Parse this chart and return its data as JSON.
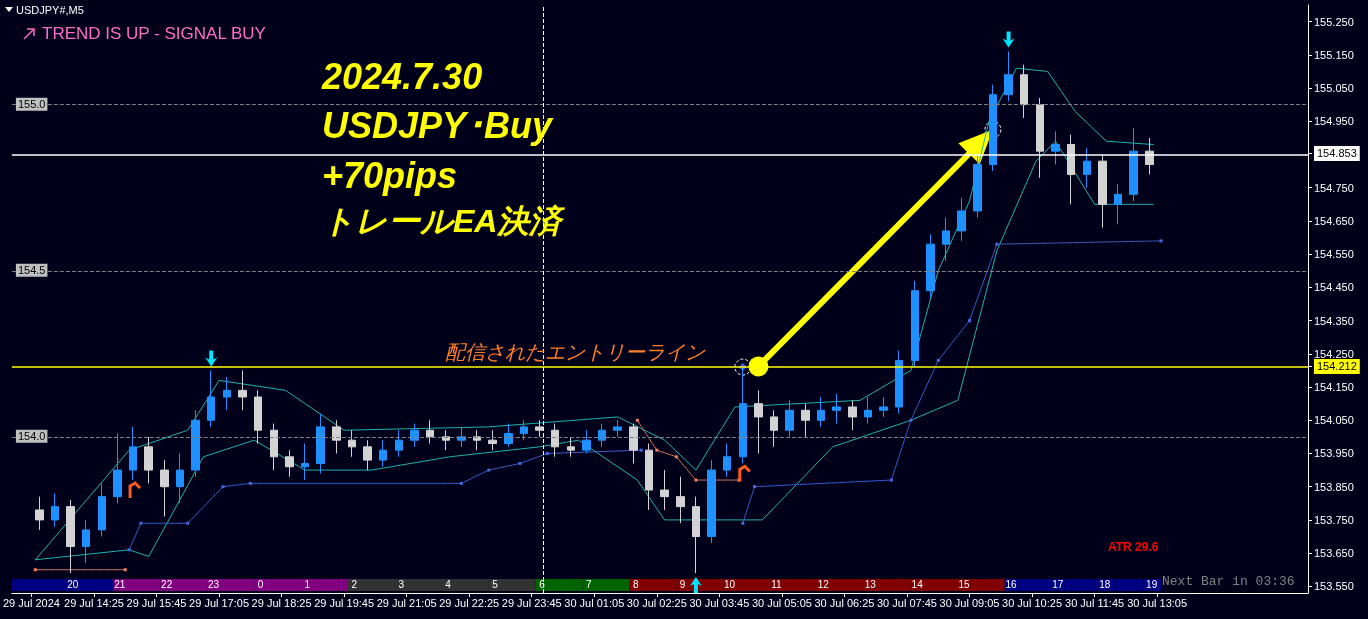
{
  "chart_data": {
    "type": "candlestick",
    "title": "USDJPY#,M5",
    "subtitle": "TREND IS UP - SIGNAL BUY",
    "annotations": [
      "2024.7.30",
      "USDJPY･Buy",
      "+70pips",
      "トレールEA決済",
      "ATR 29.6",
      "Next Bar in 03:36"
    ],
    "xlim": [
      "2024-07-29T12:40",
      "2024-07-30T16:18"
    ],
    "x2lim": [
      "2024-07-29T12:40",
      "2024-07-30T16:18"
    ],
    "x2ticks": [
      {
        "value": "2024-07-29T13:58",
        "label": "20"
      },
      {
        "value": "2024-07-29T14:58",
        "label": "21"
      },
      {
        "value": "2024-07-29T15:58",
        "label": "22"
      },
      {
        "value": "2024-07-29T16:58",
        "label": "23"
      },
      {
        "value": "2024-07-29T17:58",
        "label": "0"
      },
      {
        "value": "2024-07-29T18:58",
        "label": "1"
      },
      {
        "value": "2024-07-29T19:58",
        "label": "2"
      },
      {
        "value": "2024-07-29T20:58",
        "label": "3"
      },
      {
        "value": "2024-07-29T21:58",
        "label": "4"
      },
      {
        "value": "2024-07-29T22:58",
        "label": "5"
      },
      {
        "value": "2024-07-29T23:58",
        "label": "6"
      },
      {
        "value": "2024-07-30T00:58",
        "label": "7"
      },
      {
        "value": "2024-07-30T01:58",
        "label": "8"
      },
      {
        "value": "2024-07-30T02:58",
        "label": "9"
      },
      {
        "value": "2024-07-30T03:58",
        "label": "10"
      },
      {
        "value": "2024-07-30T04:58",
        "label": "11"
      },
      {
        "value": "2024-07-30T05:58",
        "label": "12"
      },
      {
        "value": "2024-07-30T06:58",
        "label": "13"
      },
      {
        "value": "2024-07-30T07:58",
        "label": "14"
      },
      {
        "value": "2024-07-30T08:58",
        "label": "15"
      },
      {
        "value": "2024-07-30T09:58",
        "label": "16"
      },
      {
        "value": "2024-07-30T10:58",
        "label": "17"
      },
      {
        "value": "2024-07-30T11:58",
        "label": "18"
      },
      {
        "value": "2024-07-30T12:58",
        "label": "19"
      }
    ],
    "xticks": [
      {
        "value": "2024-07-29T13:05",
        "label": "29 Jul 2024"
      },
      {
        "value": "2024-07-29T14:25",
        "label": "29 Jul 14:25"
      },
      {
        "value": "2024-07-29T15:45",
        "label": "29 Jul 15:45"
      },
      {
        "value": "2024-07-29T17:05",
        "label": "29 Jul 17:05"
      },
      {
        "value": "2024-07-29T18:25",
        "label": "29 Jul 18:25"
      },
      {
        "value": "2024-07-29T19:45",
        "label": "29 Jul 19:45"
      },
      {
        "value": "2024-07-29T21:05",
        "label": "29 Jul 21:05"
      },
      {
        "value": "2024-07-29T22:25",
        "label": "29 Jul 22:25"
      },
      {
        "value": "2024-07-29T23:45",
        "label": "29 Jul 23:45"
      },
      {
        "value": "2024-07-30T01:05",
        "label": "30 Jul 01:05"
      },
      {
        "value": "2024-07-30T02:25",
        "label": "30 Jul 02:25"
      },
      {
        "value": "2024-07-30T03:45",
        "label": "30 Jul 03:45"
      },
      {
        "value": "2024-07-30T05:05",
        "label": "30 Jul 05:05"
      },
      {
        "value": "2024-07-30T06:25",
        "label": "30 Jul 06:25"
      },
      {
        "value": "2024-07-30T07:45",
        "label": "30 Jul 07:45"
      },
      {
        "value": "2024-07-30T09:05",
        "label": "30 Jul 09:05"
      },
      {
        "value": "2024-07-30T10:25",
        "label": "30 Jul 10:25"
      },
      {
        "value": "2024-07-30T11:45",
        "label": "30 Jul 11:45"
      },
      {
        "value": "2024-07-30T13:05",
        "label": "30 Jul 13:05"
      }
    ],
    "ylim": [
      153.53,
      155.3
    ],
    "yticks": [
      {
        "value": 153.55,
        "label": "153.550"
      },
      {
        "value": 153.65,
        "label": "153.650"
      },
      {
        "value": 153.75,
        "label": "153.750"
      },
      {
        "value": 153.85,
        "label": "153.850"
      },
      {
        "value": 153.95,
        "label": "153.950"
      },
      {
        "value": 154.05,
        "label": "154.050"
      },
      {
        "value": 154.15,
        "label": "154.150"
      },
      {
        "value": 154.212,
        "label": "154.212"
      },
      {
        "value": 154.25,
        "label": "154.250"
      },
      {
        "value": 154.35,
        "label": "154.350"
      },
      {
        "value": 154.45,
        "label": "154.450"
      },
      {
        "value": 154.55,
        "label": "154.550"
      },
      {
        "value": 154.65,
        "label": "154.650"
      },
      {
        "value": 154.75,
        "label": "154.750"
      },
      {
        "value": 154.853,
        "label": "154.853"
      },
      {
        "value": 154.95,
        "label": "154.950"
      },
      {
        "value": 155.05,
        "label": "155.050"
      },
      {
        "value": 155.15,
        "label": "155.150"
      },
      {
        "value": 155.25,
        "label": "155.250"
      }
    ],
    "grid": false,
    "ref_lines": [
      {
        "axis": "y",
        "value": 155.0,
        "label": "155.0",
        "color": "#808080",
        "line_style": "dashed"
      },
      {
        "axis": "y",
        "value": 154.5,
        "label": "154.5",
        "color": "#808080",
        "line_style": "dashed"
      },
      {
        "axis": "y",
        "value": 154.0,
        "label": "154.0",
        "color": "#808080",
        "line_style": "dashed"
      },
      {
        "axis": "y",
        "value": 154.853,
        "color": "#ffffff",
        "line_style": "solid"
      },
      {
        "axis": "y",
        "value": 154.212,
        "label": "配信されたエントリーライン",
        "color": "#ffff00",
        "line_style": "solid"
      },
      {
        "axis": "x",
        "value": "2024-07-30T00:00",
        "color": "#ffffff",
        "line_style": "dashed"
      }
    ],
    "series": [
      {
        "type": "line",
        "color": "#20b2aa",
        "x": [
          "2024-07-29T13:10",
          "2024-07-29T15:10",
          "2024-07-29T16:25",
          "2024-07-29T17:05",
          "2024-07-29T18:30",
          "2024-07-29T19:45",
          "2024-07-29T22:50",
          "2024-07-30T01:35",
          "2024-07-30T02:35",
          "2024-07-30T03:15",
          "2024-07-30T04:05",
          "2024-07-30T06:45",
          "2024-07-30T07:50",
          "2024-07-30T08:25",
          "2024-07-30T09:05",
          "2024-07-30T09:30",
          "2024-07-30T10:05",
          "2024-07-30T10:45",
          "2024-07-30T11:20",
          "2024-07-30T12:00",
          "2024-07-30T13:00"
        ],
        "values": [
          153.63,
          153.96,
          154.02,
          154.17,
          154.14,
          154.02,
          154.03,
          154.06,
          153.99,
          153.9,
          154.09,
          154.11,
          154.2,
          154.5,
          154.71,
          154.95,
          155.11,
          155.1,
          154.98,
          154.89,
          154.88
        ]
      },
      {
        "type": "line",
        "color": "#20b2aa",
        "x": [
          "2024-07-29T13:10",
          "2024-07-29T15:10",
          "2024-07-29T15:35",
          "2024-07-29T16:45",
          "2024-07-29T17:50",
          "2024-07-29T18:55",
          "2024-07-29T20:20",
          "2024-07-29T22:00",
          "2024-07-29T23:55",
          "2024-07-30T00:45",
          "2024-07-30T02:00",
          "2024-07-30T02:35",
          "2024-07-30T04:40",
          "2024-07-30T06:10",
          "2024-07-30T07:50",
          "2024-07-30T08:50",
          "2024-07-30T09:40",
          "2024-07-30T10:30",
          "2024-07-30T10:55",
          "2024-07-30T11:45",
          "2024-07-30T13:00"
        ],
        "values": [
          153.63,
          153.66,
          153.64,
          153.94,
          153.99,
          153.9,
          153.9,
          153.94,
          153.97,
          153.99,
          153.87,
          153.75,
          153.75,
          153.97,
          154.05,
          154.11,
          154.56,
          154.83,
          154.89,
          154.7,
          154.7
        ]
      },
      {
        "type": "line",
        "color": "#4169e1",
        "marker": "square",
        "line_style": "dotted",
        "x": [
          "2024-07-29T15:10",
          "2024-07-29T15:25",
          "2024-07-29T16:25",
          "2024-07-29T17:10",
          "2024-07-29T17:45",
          "2024-07-29T22:15",
          "2024-07-29T22:50",
          "2024-07-29T23:30",
          "2024-07-30T00:05",
          "2024-07-30T02:05",
          "2024-07-30T03:00",
          "2024-07-30T04:15",
          "2024-07-30T04:30",
          "2024-07-30T07:25",
          "2024-07-30T07:50",
          "2024-07-30T08:25",
          "2024-07-30T09:05",
          "2024-07-30T09:40",
          "2024-07-30T13:10"
        ],
        "values": [
          153.66,
          153.74,
          153.74,
          153.85,
          153.86,
          153.86,
          153.9,
          153.92,
          153.95,
          153.96,
          null,
          153.74,
          153.85,
          153.87,
          154.05,
          154.23,
          154.35,
          154.58,
          154.59
        ]
      },
      {
        "type": "line",
        "color": "#f08060",
        "marker": "square",
        "line_style": "dotted",
        "x": [
          "2024-07-29T13:10",
          "2024-07-29T15:05",
          "2024-07-29T20:00",
          "2024-07-30T02:00",
          "2024-07-30T02:25",
          "2024-07-30T02:50",
          "2024-07-30T03:15",
          "2024-07-30T04:10"
        ],
        "values": [
          153.6,
          153.6,
          null,
          154.05,
          153.96,
          153.94,
          153.87,
          153.87
        ]
      },
      {
        "type": "candlestick",
        "x": [
          "2024-07-29T13:15",
          "2024-07-29T13:35",
          "2024-07-29T13:55",
          "2024-07-29T14:15",
          "2024-07-29T14:35",
          "2024-07-29T14:55",
          "2024-07-29T15:15",
          "2024-07-29T15:35",
          "2024-07-29T15:55",
          "2024-07-29T16:15",
          "2024-07-29T16:35",
          "2024-07-29T16:55",
          "2024-07-29T17:15",
          "2024-07-29T17:35",
          "2024-07-29T17:55",
          "2024-07-29T18:15",
          "2024-07-29T18:35",
          "2024-07-29T18:55",
          "2024-07-29T19:15",
          "2024-07-29T19:35",
          "2024-07-29T19:55",
          "2024-07-29T20:15",
          "2024-07-29T20:35",
          "2024-07-29T20:55",
          "2024-07-29T21:15",
          "2024-07-29T21:35",
          "2024-07-29T21:55",
          "2024-07-29T22:15",
          "2024-07-29T22:35",
          "2024-07-29T22:55",
          "2024-07-29T23:15",
          "2024-07-29T23:35",
          "2024-07-29T23:55",
          "2024-07-30T00:15",
          "2024-07-30T00:35",
          "2024-07-30T00:55",
          "2024-07-30T01:15",
          "2024-07-30T01:35",
          "2024-07-30T01:55",
          "2024-07-30T02:15",
          "2024-07-30T02:35",
          "2024-07-30T02:55",
          "2024-07-30T03:15",
          "2024-07-30T03:35",
          "2024-07-30T03:55",
          "2024-07-30T04:15",
          "2024-07-30T04:35",
          "2024-07-30T04:55",
          "2024-07-30T05:15",
          "2024-07-30T05:35",
          "2024-07-30T05:55",
          "2024-07-30T06:15",
          "2024-07-30T06:35",
          "2024-07-30T06:55",
          "2024-07-30T07:15",
          "2024-07-30T07:35",
          "2024-07-30T07:55",
          "2024-07-30T08:15",
          "2024-07-30T08:35",
          "2024-07-30T08:55",
          "2024-07-30T09:15",
          "2024-07-30T09:35",
          "2024-07-30T09:55",
          "2024-07-30T10:15",
          "2024-07-30T10:35",
          "2024-07-30T10:55",
          "2024-07-30T11:15",
          "2024-07-30T11:35",
          "2024-07-30T11:55",
          "2024-07-30T12:15",
          "2024-07-30T12:35",
          "2024-07-30T12:55"
        ],
        "ohlc": [
          [
            153.78,
            153.82,
            153.72,
            153.75
          ],
          [
            153.75,
            153.83,
            153.73,
            153.79
          ],
          [
            153.79,
            153.81,
            153.59,
            153.67
          ],
          [
            153.67,
            153.75,
            153.62,
            153.72
          ],
          [
            153.72,
            153.86,
            153.7,
            153.82
          ],
          [
            153.82,
            154.01,
            153.8,
            153.9
          ],
          [
            153.9,
            154.03,
            153.87,
            153.97
          ],
          [
            153.97,
            154.0,
            153.86,
            153.9
          ],
          [
            153.9,
            153.93,
            153.76,
            153.85
          ],
          [
            153.85,
            153.95,
            153.8,
            153.9
          ],
          [
            153.9,
            154.08,
            153.88,
            154.05
          ],
          [
            154.05,
            154.2,
            154.03,
            154.12
          ],
          [
            154.12,
            154.18,
            154.08,
            154.14
          ],
          [
            154.14,
            154.2,
            154.08,
            154.12
          ],
          [
            154.12,
            154.14,
            153.98,
            154.02
          ],
          [
            154.02,
            154.04,
            153.9,
            153.94
          ],
          [
            153.94,
            153.96,
            153.88,
            153.91
          ],
          [
            153.91,
            153.98,
            153.87,
            153.92
          ],
          [
            153.92,
            154.07,
            153.89,
            154.03
          ],
          [
            154.03,
            154.05,
            153.95,
            153.99
          ],
          [
            153.99,
            154.02,
            153.94,
            153.97
          ],
          [
            153.97,
            153.99,
            153.9,
            153.93
          ],
          [
            153.93,
            153.99,
            153.91,
            153.96
          ],
          [
            153.96,
            154.02,
            153.94,
            153.99
          ],
          [
            153.99,
            154.04,
            153.97,
            154.02
          ],
          [
            154.02,
            154.05,
            153.98,
            154.0
          ],
          [
            154.0,
            154.02,
            153.96,
            153.99
          ],
          [
            153.99,
            154.03,
            153.97,
            154.0
          ],
          [
            154.0,
            154.02,
            153.96,
            153.99
          ],
          [
            153.99,
            154.02,
            153.96,
            153.98
          ],
          [
            153.98,
            154.04,
            153.97,
            154.01
          ],
          [
            154.01,
            154.05,
            153.99,
            154.03
          ],
          [
            154.03,
            154.05,
            154.0,
            154.02
          ],
          [
            154.02,
            154.04,
            153.94,
            153.97
          ],
          [
            153.97,
            154.0,
            153.94,
            153.96
          ],
          [
            153.96,
            154.02,
            153.95,
            153.99
          ],
          [
            153.99,
            154.04,
            153.97,
            154.02
          ],
          [
            154.02,
            154.05,
            154.0,
            154.03
          ],
          [
            154.03,
            154.04,
            153.92,
            153.96
          ],
          [
            153.96,
            153.98,
            153.78,
            153.84
          ],
          [
            153.84,
            153.9,
            153.78,
            153.82
          ],
          [
            153.82,
            153.88,
            153.74,
            153.79
          ],
          [
            153.79,
            153.82,
            153.59,
            153.7
          ],
          [
            153.7,
            153.93,
            153.68,
            153.9
          ],
          [
            153.9,
            153.98,
            153.88,
            153.94
          ],
          [
            153.94,
            154.21,
            153.92,
            154.1
          ],
          [
            154.1,
            154.14,
            153.95,
            154.06
          ],
          [
            154.06,
            154.08,
            153.97,
            154.02
          ],
          [
            154.02,
            154.11,
            154.0,
            154.08
          ],
          [
            154.08,
            154.1,
            154.0,
            154.05
          ],
          [
            154.05,
            154.12,
            154.03,
            154.08
          ],
          [
            154.08,
            154.13,
            154.04,
            154.09
          ],
          [
            154.09,
            154.11,
            154.02,
            154.06
          ],
          [
            154.06,
            154.12,
            154.04,
            154.08
          ],
          [
            154.08,
            154.12,
            154.06,
            154.09
          ],
          [
            154.09,
            154.26,
            154.07,
            154.23
          ],
          [
            154.23,
            154.47,
            154.21,
            154.44
          ],
          [
            154.44,
            154.61,
            154.42,
            154.58
          ],
          [
            154.58,
            154.66,
            154.53,
            154.62
          ],
          [
            154.62,
            154.72,
            154.59,
            154.68
          ],
          [
            154.68,
            154.85,
            154.66,
            154.82
          ],
          [
            154.82,
            155.06,
            154.8,
            155.03
          ],
          [
            155.03,
            155.16,
            155.01,
            155.09
          ],
          [
            155.09,
            155.12,
            154.96,
            155.0
          ],
          [
            155.0,
            155.02,
            154.78,
            154.86
          ],
          [
            154.86,
            154.92,
            154.82,
            154.88
          ],
          [
            154.88,
            154.91,
            154.7,
            154.79
          ],
          [
            154.79,
            154.87,
            154.75,
            154.83
          ],
          [
            154.83,
            154.85,
            154.63,
            154.7
          ],
          [
            154.7,
            154.76,
            154.64,
            154.73
          ],
          [
            154.73,
            154.93,
            154.71,
            154.86
          ],
          [
            154.86,
            154.9,
            154.79,
            154.82
          ]
        ],
        "colors": [
          "#d3d3d3",
          "#1e90ff",
          "#d3d3d3",
          "#1e90ff",
          "#1e90ff",
          "#1e90ff",
          "#1e90ff",
          "#d3d3d3",
          "#d3d3d3",
          "#1e90ff",
          "#1e90ff",
          "#1e90ff",
          "#1e90ff",
          "#d3d3d3",
          "#d3d3d3",
          "#d3d3d3",
          "#d3d3d3",
          "#1e90ff",
          "#1e90ff",
          "#d3d3d3",
          "#d3d3d3",
          "#d3d3d3",
          "#1e90ff",
          "#1e90ff",
          "#1e90ff",
          "#d3d3d3",
          "#d3d3d3",
          "#1e90ff",
          "#d3d3d3",
          "#d3d3d3",
          "#1e90ff",
          "#1e90ff",
          "#d3d3d3",
          "#d3d3d3",
          "#d3d3d3",
          "#1e90ff",
          "#1e90ff",
          "#1e90ff",
          "#d3d3d3",
          "#d3d3d3",
          "#d3d3d3",
          "#d3d3d3",
          "#d3d3d3",
          "#1e90ff",
          "#1e90ff",
          "#1e90ff",
          "#d3d3d3",
          "#d3d3d3",
          "#1e90ff",
          "#d3d3d3",
          "#1e90ff",
          "#1e90ff",
          "#d3d3d3",
          "#1e90ff",
          "#1e90ff",
          "#1e90ff",
          "#1e90ff",
          "#1e90ff",
          "#1e90ff",
          "#1e90ff",
          "#1e90ff",
          "#1e90ff",
          "#1e90ff",
          "#d3d3d3",
          "#d3d3d3",
          "#1e90ff",
          "#d3d3d3",
          "#1e90ff",
          "#d3d3d3",
          "#1e90ff",
          "#1e90ff",
          "#d3d3d3"
        ]
      }
    ]
  }
}
